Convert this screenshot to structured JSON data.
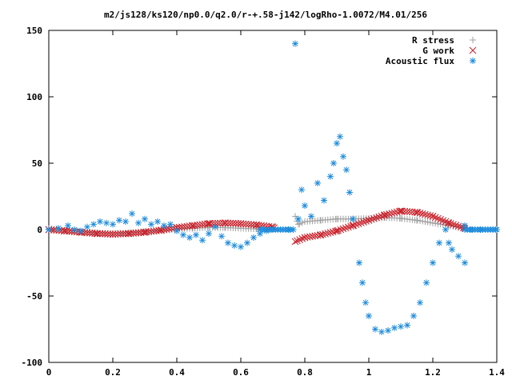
{
  "chart_data": {
    "type": "scatter",
    "title": "m2/js128/ks120/np0.0/q2.0/r-+.58-j142/logRho-1.0072/M4.01/256",
    "xlabel": "",
    "ylabel": "",
    "xlim": [
      0,
      1.4
    ],
    "ylim": [
      -100,
      150
    ],
    "xticks": [
      "0",
      "0.2",
      "0.4",
      "0.6",
      "0.8",
      "1",
      "1.2",
      "1.4"
    ],
    "yticks": [
      "150",
      "100",
      "50",
      "0",
      "-50",
      "-100"
    ],
    "legend_position": "top-right",
    "grid": false,
    "series": [
      {
        "name": "R stress",
        "marker": "plus",
        "color": "#a0a0a0",
        "points": [
          [
            0.0,
            0.5
          ],
          [
            0.05,
            -0.5
          ],
          [
            0.1,
            -1.5
          ],
          [
            0.15,
            -2.5
          ],
          [
            0.2,
            -3
          ],
          [
            0.25,
            -2.5
          ],
          [
            0.3,
            -1.5
          ],
          [
            0.35,
            -0.5
          ],
          [
            0.4,
            0.5
          ],
          [
            0.45,
            1
          ],
          [
            0.5,
            1.5
          ],
          [
            0.55,
            1.5
          ],
          [
            0.6,
            1
          ],
          [
            0.65,
            0.5
          ],
          [
            0.7,
            0
          ],
          [
            0.77,
            10
          ],
          [
            0.78,
            4
          ],
          [
            0.8,
            6
          ],
          [
            0.85,
            7
          ],
          [
            0.9,
            8
          ],
          [
            0.95,
            8
          ],
          [
            1.0,
            8.5
          ],
          [
            1.05,
            9
          ],
          [
            1.1,
            8.5
          ],
          [
            1.15,
            7
          ],
          [
            1.2,
            5
          ],
          [
            1.25,
            3
          ],
          [
            1.3,
            1
          ]
        ]
      },
      {
        "name": "G work",
        "marker": "cross",
        "color": "#c81e28",
        "points": [
          [
            0.0,
            0
          ],
          [
            0.05,
            -1
          ],
          [
            0.1,
            -2
          ],
          [
            0.15,
            -3
          ],
          [
            0.2,
            -3.5
          ],
          [
            0.25,
            -3
          ],
          [
            0.3,
            -2
          ],
          [
            0.35,
            -0.5
          ],
          [
            0.4,
            1.5
          ],
          [
            0.45,
            3
          ],
          [
            0.5,
            4.5
          ],
          [
            0.55,
            5
          ],
          [
            0.6,
            4.5
          ],
          [
            0.65,
            3.5
          ],
          [
            0.7,
            2
          ],
          [
            0.77,
            -9
          ],
          [
            0.8,
            -6
          ],
          [
            0.85,
            -4
          ],
          [
            0.9,
            -1
          ],
          [
            0.95,
            3
          ],
          [
            1.0,
            7
          ],
          [
            1.05,
            11
          ],
          [
            1.1,
            14
          ],
          [
            1.15,
            13
          ],
          [
            1.2,
            10
          ],
          [
            1.25,
            5
          ],
          [
            1.3,
            1
          ]
        ]
      },
      {
        "name": "Acoustic flux",
        "marker": "star",
        "color": "#1e8cdc",
        "points": [
          [
            0.0,
            0
          ],
          [
            0.03,
            1
          ],
          [
            0.06,
            3
          ],
          [
            0.08,
            0
          ],
          [
            0.1,
            -1
          ],
          [
            0.12,
            2
          ],
          [
            0.14,
            4
          ],
          [
            0.16,
            6
          ],
          [
            0.18,
            5
          ],
          [
            0.2,
            4
          ],
          [
            0.22,
            7
          ],
          [
            0.24,
            6
          ],
          [
            0.26,
            12
          ],
          [
            0.28,
            5
          ],
          [
            0.3,
            8
          ],
          [
            0.32,
            4
          ],
          [
            0.34,
            6
          ],
          [
            0.36,
            3
          ],
          [
            0.38,
            4
          ],
          [
            0.4,
            -1
          ],
          [
            0.42,
            -4
          ],
          [
            0.44,
            -6
          ],
          [
            0.46,
            -4
          ],
          [
            0.48,
            -8
          ],
          [
            0.5,
            -3
          ],
          [
            0.52,
            2
          ],
          [
            0.54,
            -5
          ],
          [
            0.56,
            -10
          ],
          [
            0.58,
            -12
          ],
          [
            0.6,
            -13
          ],
          [
            0.62,
            -10
          ],
          [
            0.64,
            -6
          ],
          [
            0.66,
            -3
          ],
          [
            0.68,
            -1
          ],
          [
            0.7,
            0
          ],
          [
            0.75,
            0
          ],
          [
            0.77,
            140
          ],
          [
            0.78,
            8
          ],
          [
            0.79,
            30
          ],
          [
            0.8,
            18
          ],
          [
            0.82,
            10
          ],
          [
            0.84,
            35
          ],
          [
            0.86,
            22
          ],
          [
            0.88,
            40
          ],
          [
            0.89,
            50
          ],
          [
            0.9,
            65
          ],
          [
            0.91,
            70
          ],
          [
            0.92,
            55
          ],
          [
            0.93,
            45
          ],
          [
            0.94,
            28
          ],
          [
            0.95,
            8
          ],
          [
            0.97,
            -25
          ],
          [
            0.98,
            -40
          ],
          [
            0.99,
            -55
          ],
          [
            1.0,
            -65
          ],
          [
            1.02,
            -75
          ],
          [
            1.04,
            -77
          ],
          [
            1.06,
            -76
          ],
          [
            1.08,
            -74
          ],
          [
            1.1,
            -73
          ],
          [
            1.12,
            -72
          ],
          [
            1.14,
            -65
          ],
          [
            1.16,
            -55
          ],
          [
            1.18,
            -40
          ],
          [
            1.2,
            -25
          ],
          [
            1.22,
            -10
          ],
          [
            1.24,
            0
          ],
          [
            1.25,
            -10
          ],
          [
            1.26,
            -15
          ],
          [
            1.28,
            -20
          ],
          [
            1.3,
            -25
          ],
          [
            1.3,
            3
          ],
          [
            1.32,
            0
          ],
          [
            1.35,
            0
          ],
          [
            1.38,
            0
          ],
          [
            1.4,
            0
          ]
        ]
      }
    ]
  }
}
